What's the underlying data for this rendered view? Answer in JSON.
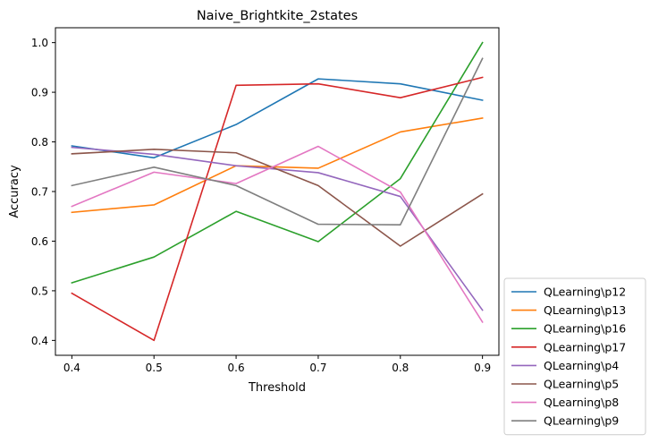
{
  "chart_data": {
    "type": "line",
    "title": "Naive_Brightkite_2states",
    "xlabel": "Threshold",
    "ylabel": "Accuracy",
    "x": [
      0.4,
      0.5,
      0.6,
      0.7,
      0.8,
      0.9
    ],
    "x_tick_labels": [
      "0.4",
      "0.5",
      "0.6",
      "0.7",
      "0.8",
      "0.9"
    ],
    "y_ticks": [
      0.4,
      0.5,
      0.6,
      0.7,
      0.8,
      0.9,
      1.0
    ],
    "y_tick_labels": [
      "0.4",
      "0.5",
      "0.6",
      "0.7",
      "0.8",
      "0.9",
      "1.0"
    ],
    "xlim": [
      0.38,
      0.92
    ],
    "ylim": [
      0.37,
      1.03
    ],
    "legend_position": "outside-lower-right",
    "grid": false,
    "series": [
      {
        "name": "QLearning\\p12",
        "color": "#1f77b4",
        "values": [
          0.792,
          0.768,
          0.835,
          0.927,
          0.917,
          0.884
        ]
      },
      {
        "name": "QLearning\\p13",
        "color": "#ff7f0e",
        "values": [
          0.658,
          0.673,
          0.752,
          0.747,
          0.82,
          0.848
        ]
      },
      {
        "name": "QLearning\\p16",
        "color": "#2ca02c",
        "values": [
          0.516,
          0.568,
          0.66,
          0.599,
          0.726,
          1.0
        ]
      },
      {
        "name": "QLearning\\p17",
        "color": "#d62728",
        "values": [
          0.495,
          0.4,
          0.914,
          0.917,
          0.889,
          0.93
        ]
      },
      {
        "name": "QLearning\\p4",
        "color": "#9467bd",
        "values": [
          0.789,
          0.775,
          0.752,
          0.738,
          0.69,
          0.461
        ]
      },
      {
        "name": "QLearning\\p5",
        "color": "#8c564b",
        "values": [
          0.776,
          0.785,
          0.778,
          0.712,
          0.59,
          0.695
        ]
      },
      {
        "name": "QLearning\\p8",
        "color": "#e377c2",
        "values": [
          0.67,
          0.739,
          0.716,
          0.791,
          0.699,
          0.437
        ]
      },
      {
        "name": "QLearning\\p9",
        "color": "#7f7f7f",
        "values": [
          0.712,
          0.749,
          0.712,
          0.634,
          0.633,
          0.968
        ]
      }
    ]
  }
}
